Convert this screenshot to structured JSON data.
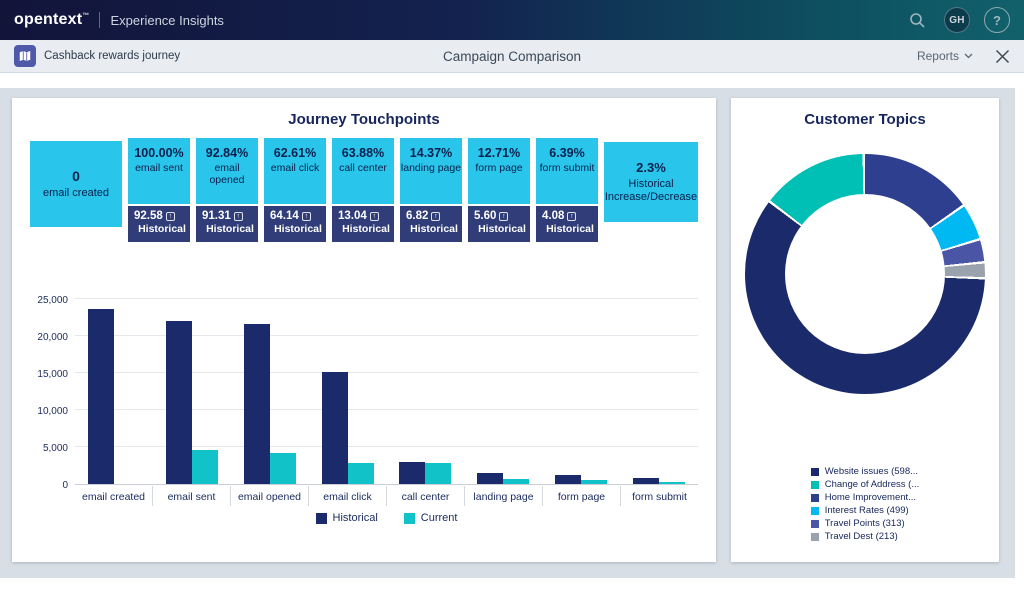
{
  "topbar": {
    "logo": "opentext",
    "logo_tm": "™",
    "product": "Experience Insights",
    "avatar_initials": "GH",
    "help_label": "?"
  },
  "subheader": {
    "journey_name": "Cashback rewards journey",
    "title": "Campaign Comparison",
    "reports_label": "Reports"
  },
  "left_panel": {
    "title": "Journey Touchpoints"
  },
  "right_panel": {
    "title": "Customer Topics"
  },
  "icons": {
    "trend_glyph": "↑"
  },
  "touchpoints": {
    "historical_label": "Historical",
    "cards": [
      {
        "kind": "summary",
        "value": "0",
        "label": "email created"
      },
      {
        "kind": "metric",
        "percent": "100.00%",
        "label": "email sent",
        "historical": "92.58"
      },
      {
        "kind": "metric",
        "percent": "92.84%",
        "label": "email opened",
        "historical": "91.31"
      },
      {
        "kind": "metric",
        "percent": "62.61%",
        "label": "email click",
        "historical": "64.14"
      },
      {
        "kind": "metric",
        "percent": "63.88%",
        "label": "call center",
        "historical": "13.04"
      },
      {
        "kind": "metric",
        "percent": "14.37%",
        "label": "landing page",
        "historical": "6.82"
      },
      {
        "kind": "metric",
        "percent": "12.71%",
        "label": "form page",
        "historical": "5.60"
      },
      {
        "kind": "metric",
        "percent": "6.39%",
        "label": "form submit",
        "historical": "4.08"
      },
      {
        "kind": "summary",
        "value": "2.3%",
        "label": "Historical Increase/Decrease"
      }
    ]
  },
  "chart_data": [
    {
      "type": "bar",
      "title": "Journey Touchpoints",
      "categories": [
        "email created",
        "email sent",
        "email opened",
        "email click",
        "call center",
        "landing page",
        "form page",
        "form submit"
      ],
      "series": [
        {
          "name": "Historical",
          "color": "#1b2a6b",
          "values": [
            23700,
            22000,
            21600,
            15200,
            2950,
            1500,
            1250,
            800
          ]
        },
        {
          "name": "Current",
          "color": "#12c2c9",
          "values": [
            0,
            4600,
            4200,
            2900,
            2850,
            650,
            550,
            300
          ]
        }
      ],
      "ylim": [
        0,
        25000
      ],
      "yticks": [
        0,
        5000,
        10000,
        15000,
        20000,
        25000
      ],
      "grid": true,
      "legend_position": "bottom"
    },
    {
      "type": "pie",
      "donut": true,
      "title": "Customer Topics",
      "slices": [
        {
          "label": "Website issues (598...",
          "value": 5980,
          "color": "#1b2a6b"
        },
        {
          "label": "Change of Address (...",
          "value": 1450,
          "color": "#00bfb4"
        },
        {
          "label": "Home Improvement...",
          "value": 1550,
          "color": "#2f3f8f"
        },
        {
          "label": "Interest Rates (499)",
          "value": 499,
          "color": "#00b9f2"
        },
        {
          "label": "Travel Points (313)",
          "value": 313,
          "color": "#4a55a5"
        },
        {
          "label": "Travel Dest (213)",
          "value": 213,
          "color": "#9aa2ad"
        }
      ],
      "draw_order": [
        2,
        3,
        4,
        5,
        0,
        1
      ],
      "start_angle_deg": 0,
      "legend_position": "bottom-left"
    }
  ]
}
